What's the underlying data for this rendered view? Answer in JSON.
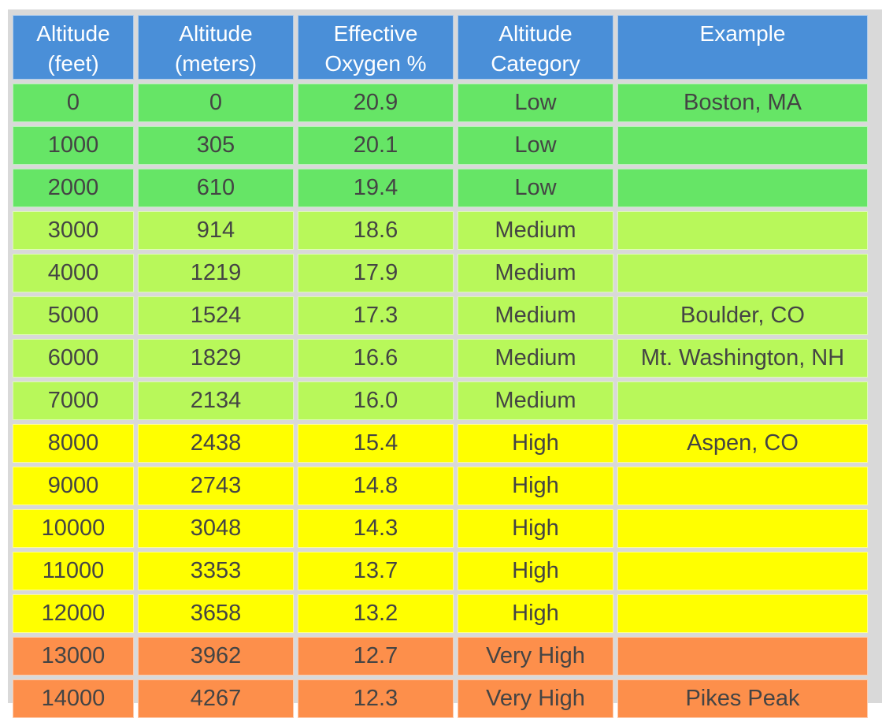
{
  "table": {
    "headers": [
      [
        "Altitude",
        "(feet)"
      ],
      [
        "Altitude",
        "(meters)"
      ],
      [
        "Effective",
        "Oxygen %"
      ],
      [
        "Altitude",
        "Category"
      ],
      [
        "Example",
        ""
      ]
    ],
    "rows": [
      {
        "feet": "0",
        "meters": "0",
        "oxygen": "20.9",
        "category": "Low",
        "example": "Boston, MA",
        "band": "low"
      },
      {
        "feet": "1000",
        "meters": "305",
        "oxygen": "20.1",
        "category": "Low",
        "example": "",
        "band": "low"
      },
      {
        "feet": "2000",
        "meters": "610",
        "oxygen": "19.4",
        "category": "Low",
        "example": "",
        "band": "low"
      },
      {
        "feet": "3000",
        "meters": "914",
        "oxygen": "18.6",
        "category": "Medium",
        "example": "",
        "band": "medium"
      },
      {
        "feet": "4000",
        "meters": "1219",
        "oxygen": "17.9",
        "category": "Medium",
        "example": "",
        "band": "medium"
      },
      {
        "feet": "5000",
        "meters": "1524",
        "oxygen": "17.3",
        "category": "Medium",
        "example": "Boulder, CO",
        "band": "medium"
      },
      {
        "feet": "6000",
        "meters": "1829",
        "oxygen": "16.6",
        "category": "Medium",
        "example": "Mt. Washington, NH",
        "band": "medium"
      },
      {
        "feet": "7000",
        "meters": "2134",
        "oxygen": "16.0",
        "category": "Medium",
        "example": "",
        "band": "medium"
      },
      {
        "feet": "8000",
        "meters": "2438",
        "oxygen": "15.4",
        "category": "High",
        "example": "Aspen, CO",
        "band": "high"
      },
      {
        "feet": "9000",
        "meters": "2743",
        "oxygen": "14.8",
        "category": "High",
        "example": "",
        "band": "high"
      },
      {
        "feet": "10000",
        "meters": "3048",
        "oxygen": "14.3",
        "category": "High",
        "example": "",
        "band": "high"
      },
      {
        "feet": "11000",
        "meters": "3353",
        "oxygen": "13.7",
        "category": "High",
        "example": "",
        "band": "high"
      },
      {
        "feet": "12000",
        "meters": "3658",
        "oxygen": "13.2",
        "category": "High",
        "example": "",
        "band": "high"
      },
      {
        "feet": "13000",
        "meters": "3962",
        "oxygen": "12.7",
        "category": "Very High",
        "example": "",
        "band": "veryhigh"
      },
      {
        "feet": "14000",
        "meters": "4267",
        "oxygen": "12.3",
        "category": "Very High",
        "example": "Pikes Peak",
        "band": "veryhigh"
      }
    ]
  },
  "colors": {
    "header": "#4a8fd8",
    "low": "#66e566",
    "medium": "#b8f85a",
    "high": "#ffff00",
    "veryhigh": "#fd8f4b"
  }
}
